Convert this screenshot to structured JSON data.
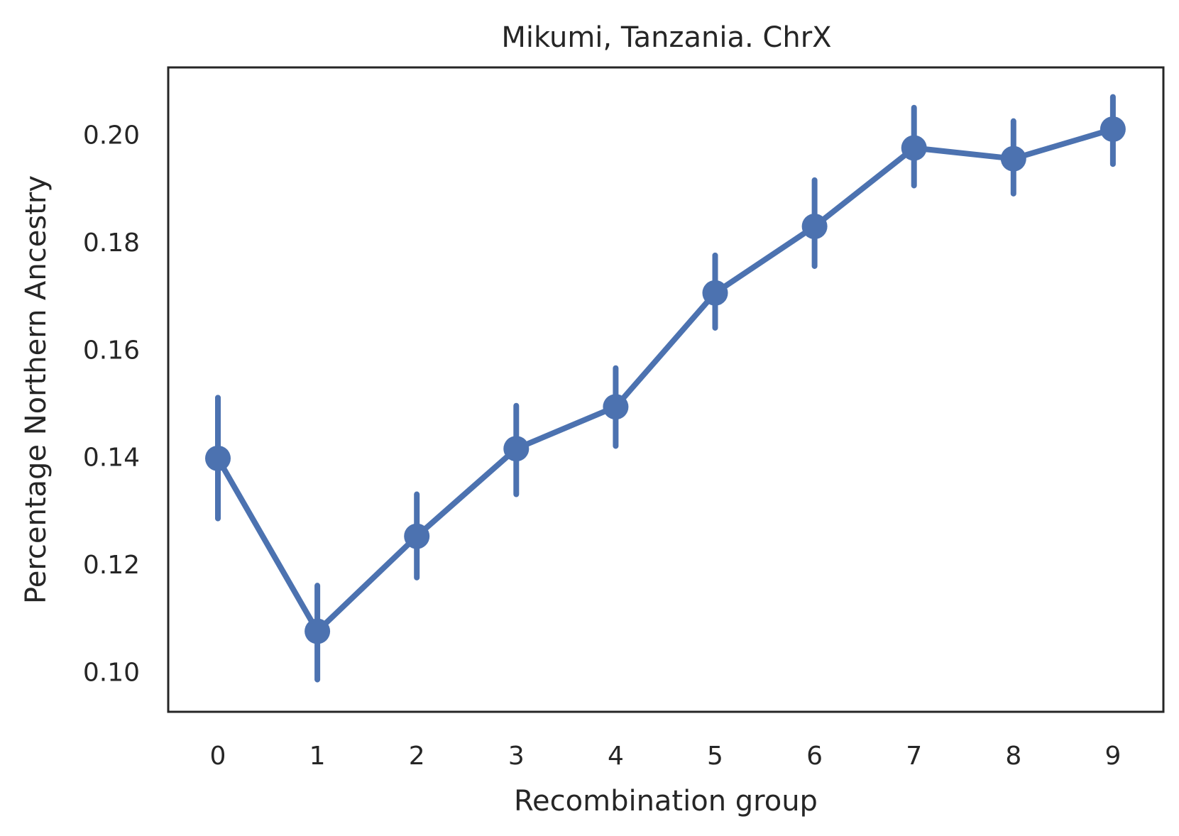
{
  "chart_data": {
    "type": "line",
    "title": "Mikumi, Tanzania. ChrX",
    "xlabel": "Recombination group",
    "ylabel": "Percentage Northern Ancestry",
    "categories": [
      "0",
      "1",
      "2",
      "3",
      "4",
      "5",
      "6",
      "7",
      "8",
      "9"
    ],
    "series": [
      {
        "values": [
          0.1397,
          0.1075,
          0.1252,
          0.1415,
          0.1493,
          0.1705,
          0.1829,
          0.1975,
          0.1955,
          0.201
        ],
        "error_low": [
          0.1285,
          0.0985,
          0.1175,
          0.133,
          0.142,
          0.164,
          0.1755,
          0.1905,
          0.189,
          0.1945
        ],
        "error_high": [
          0.151,
          0.116,
          0.133,
          0.1495,
          0.1565,
          0.1775,
          0.1915,
          0.205,
          0.2025,
          0.207
        ]
      }
    ],
    "yticks": [
      "0.10",
      "0.12",
      "0.14",
      "0.16",
      "0.18",
      "0.20"
    ],
    "ylim": [
      0.0925,
      0.2125
    ],
    "grid": false,
    "legend": "none",
    "color": "#4c72b0"
  }
}
